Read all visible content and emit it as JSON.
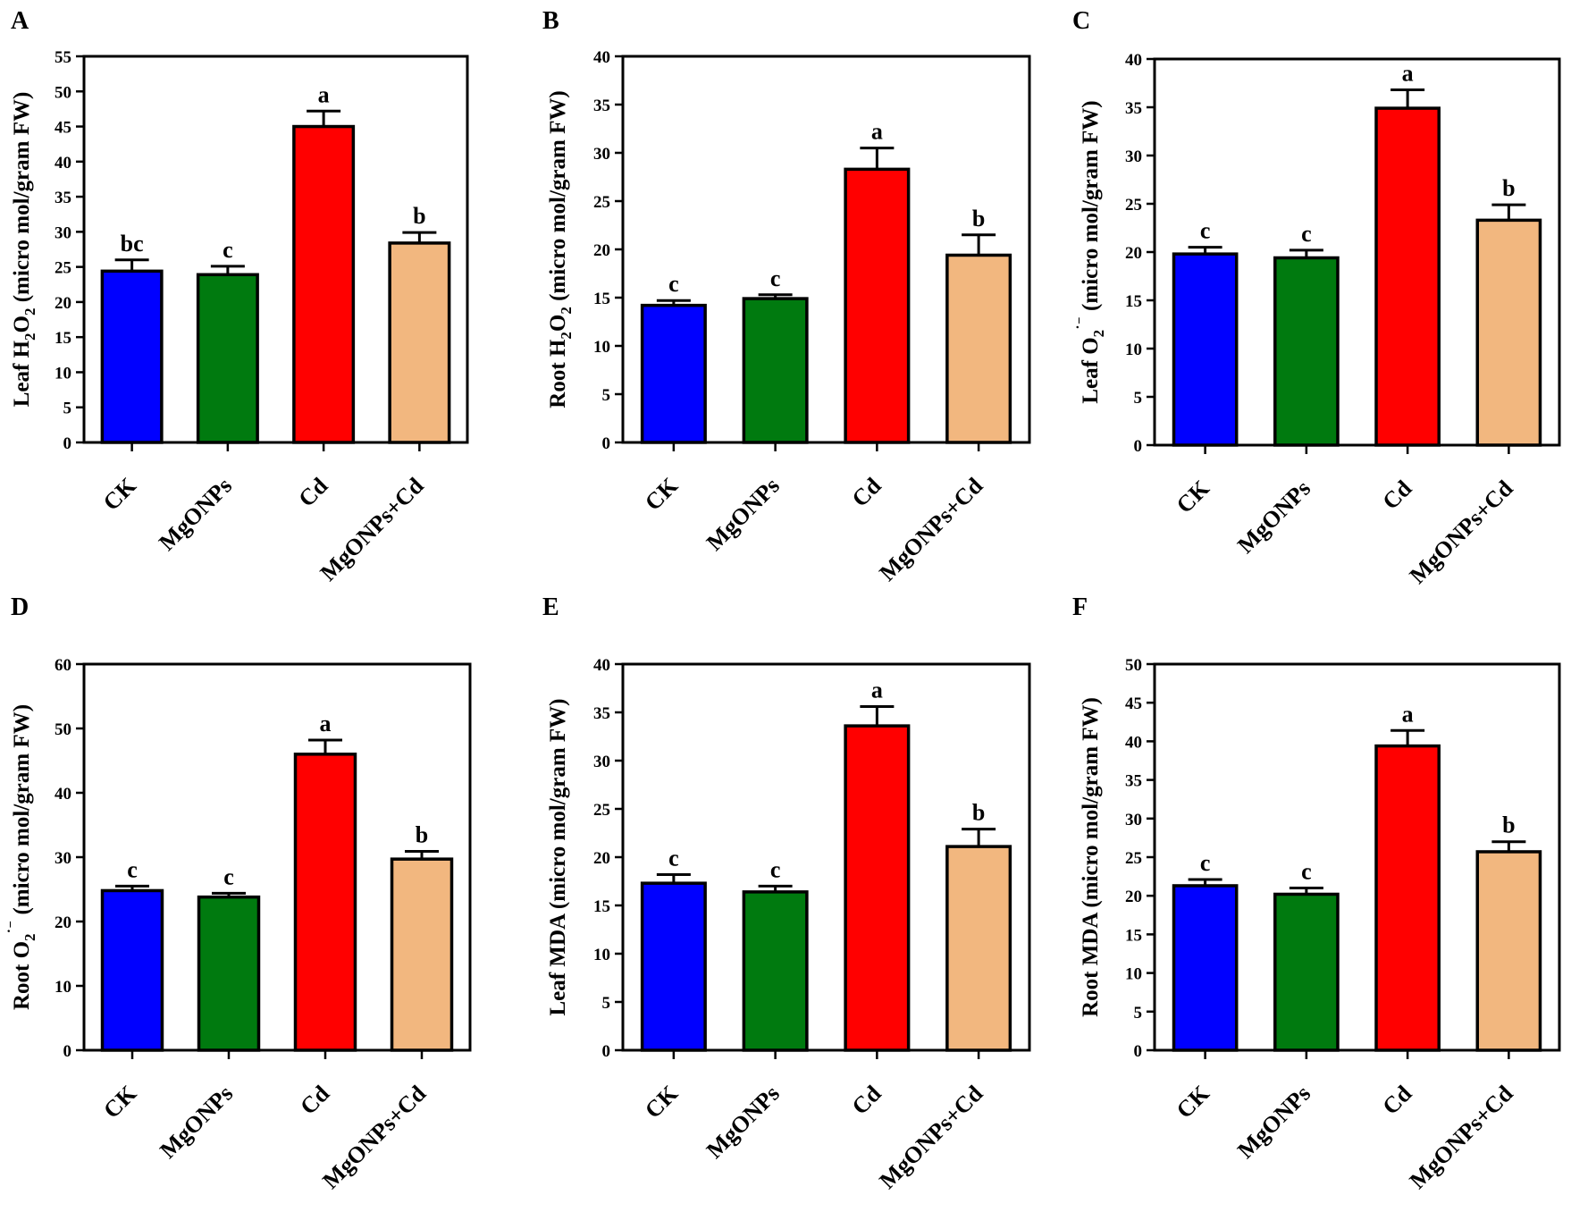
{
  "colors": {
    "CK": "#0000ff",
    "MgONPs": "#007a0f",
    "Cd": "#ff0000",
    "MgONPs+Cd": "#f2b77f",
    "axis": "#000000"
  },
  "chart_data": [
    {
      "type": "bar",
      "panel": "A",
      "ylabel": {
        "pre": "Leaf H",
        "sub1": "2",
        "mid": "O",
        "sub2": "2",
        "post": " (micro mol/gram FW)"
      },
      "categories": [
        "CK",
        "MgONPs",
        "Cd",
        "MgONPs+Cd"
      ],
      "values": [
        24.4,
        23.9,
        45.0,
        28.4
      ],
      "errors": [
        1.6,
        1.2,
        2.2,
        1.5
      ],
      "significance": [
        "bc",
        "c",
        "a",
        "b"
      ],
      "ylim": [
        0,
        55
      ],
      "yticks": [
        0,
        5,
        10,
        15,
        20,
        25,
        30,
        35,
        40,
        45,
        50,
        55
      ]
    },
    {
      "type": "bar",
      "panel": "B",
      "ylabel": {
        "pre": "Root H",
        "sub1": "2",
        "mid": "O",
        "sub2": "2",
        "post": " (micro mol/gram FW)"
      },
      "categories": [
        "CK",
        "MgONPs",
        "Cd",
        "MgONPs+Cd"
      ],
      "values": [
        14.2,
        14.9,
        28.3,
        19.4
      ],
      "errors": [
        0.5,
        0.4,
        2.2,
        2.1
      ],
      "significance": [
        "c",
        "c",
        "a",
        "b"
      ],
      "ylim": [
        0,
        40
      ],
      "yticks": [
        0,
        5,
        10,
        15,
        20,
        25,
        30,
        35,
        40
      ]
    },
    {
      "type": "bar",
      "panel": "C",
      "ylabel": {
        "pre": "Leaf O",
        "sub1": "2",
        "sup": "˙⁻",
        "post": " (micro mol/gram FW)"
      },
      "categories": [
        "CK",
        "MgONPs",
        "Cd",
        "MgONPs+Cd"
      ],
      "values": [
        19.8,
        19.4,
        34.9,
        23.3
      ],
      "errors": [
        0.7,
        0.8,
        1.9,
        1.6
      ],
      "significance": [
        "c",
        "c",
        "a",
        "b"
      ],
      "ylim": [
        0,
        40
      ],
      "yticks": [
        0,
        5,
        10,
        15,
        20,
        25,
        30,
        35,
        40
      ]
    },
    {
      "type": "bar",
      "panel": "D",
      "ylabel": {
        "pre": "Root O",
        "sub1": "2",
        "sup": "˙⁻",
        "post": " (micro mol/gram FW)"
      },
      "categories": [
        "CK",
        "MgONPs",
        "Cd",
        "MgONPs+Cd"
      ],
      "values": [
        24.8,
        23.8,
        46.0,
        29.7
      ],
      "errors": [
        0.7,
        0.6,
        2.2,
        1.2
      ],
      "significance": [
        "c",
        "c",
        "a",
        "b"
      ],
      "ylim": [
        0,
        60
      ],
      "yticks": [
        0,
        10,
        20,
        30,
        40,
        50,
        60
      ]
    },
    {
      "type": "bar",
      "panel": "E",
      "ylabel": {
        "pre": "Leaf MDA (micro mol/gram FW)"
      },
      "categories": [
        "CK",
        "MgONPs",
        "Cd",
        "MgONPs+Cd"
      ],
      "values": [
        17.3,
        16.4,
        33.6,
        21.1
      ],
      "errors": [
        0.9,
        0.6,
        2.0,
        1.8
      ],
      "significance": [
        "c",
        "c",
        "a",
        "b"
      ],
      "ylim": [
        0,
        40
      ],
      "yticks": [
        0,
        5,
        10,
        15,
        20,
        25,
        30,
        35,
        40
      ]
    },
    {
      "type": "bar",
      "panel": "F",
      "ylabel": {
        "pre": "Root MDA (micro mol/gram FW)"
      },
      "categories": [
        "CK",
        "MgONPs",
        "Cd",
        "MgONPs+Cd"
      ],
      "values": [
        21.3,
        20.2,
        39.4,
        25.7
      ],
      "errors": [
        0.8,
        0.8,
        2.0,
        1.3
      ],
      "significance": [
        "c",
        "c",
        "a",
        "b"
      ],
      "ylim": [
        0,
        50
      ],
      "yticks": [
        0,
        5,
        10,
        15,
        20,
        25,
        30,
        35,
        40,
        45,
        50
      ]
    }
  ]
}
